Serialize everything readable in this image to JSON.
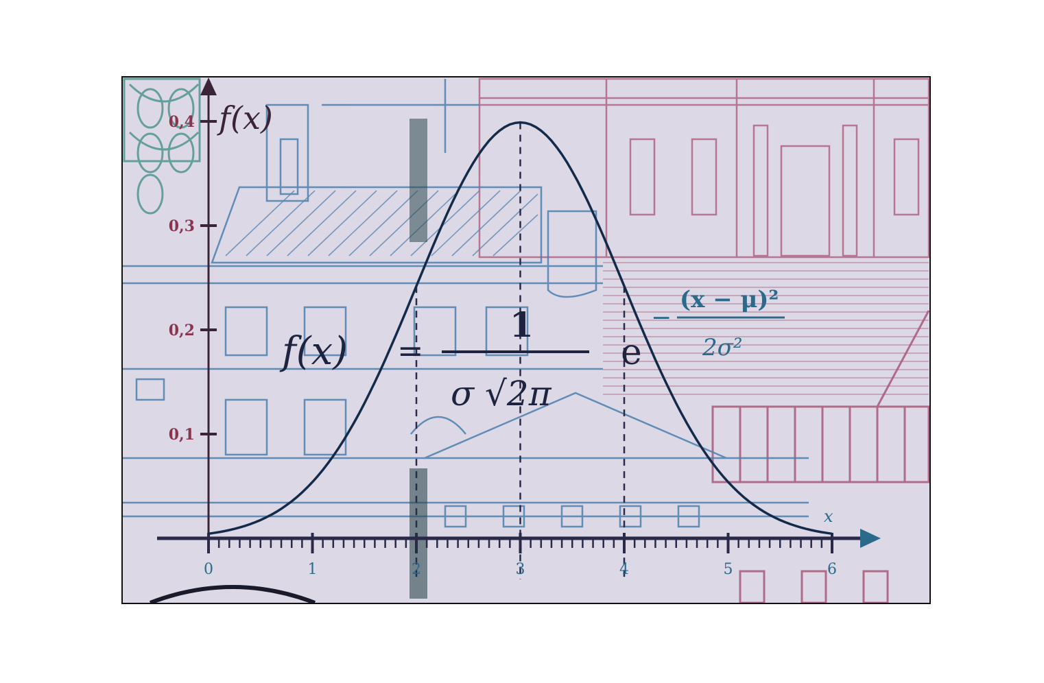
{
  "y_axis": {
    "label": "f(x)",
    "ticks": [
      "0,4",
      "0,3",
      "0,2",
      "0,1"
    ]
  },
  "x_axis": {
    "label": "x",
    "ticks": [
      "0",
      "1",
      "2",
      "3",
      "4",
      "5",
      "6"
    ]
  },
  "formula": {
    "lhs": "f(x)",
    "equals": "=",
    "numerator": "1",
    "denominator": "σ √2π",
    "base": "e",
    "exponent_sign": "−",
    "exponent_numerator": "(x − μ)²",
    "exponent_denominator": "2σ²"
  },
  "chart_data": {
    "type": "line",
    "series": [
      {
        "values": [
          0.0,
          0.054,
          0.242,
          0.399,
          0.242,
          0.054,
          0.004
        ]
      }
    ],
    "x": [
      0,
      1,
      2,
      3,
      4,
      5,
      6
    ],
    "ylim": [
      0,
      0.4
    ],
    "xlim": [
      0,
      6
    ]
  },
  "colors": {
    "curve": "#132a4a",
    "axis": "#3a2438",
    "blue_ink": "#3f76a6",
    "red_ink": "#a45a78",
    "paper": "#dcd8e6"
  }
}
